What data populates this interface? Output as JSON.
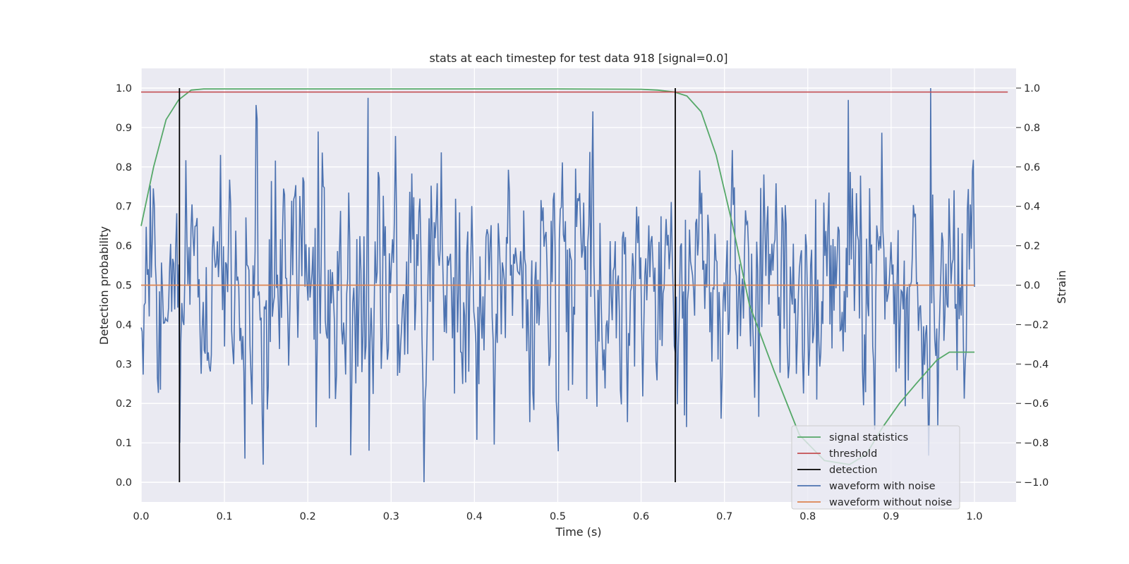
{
  "chart_data": {
    "type": "line",
    "title": "stats at each timestep for test data 918 [signal=0.0]",
    "xlabel": "Time (s)",
    "ylabel": "Detection probability",
    "y2label": "Strain",
    "xlim": [
      0.0,
      1.05
    ],
    "ylim": [
      -0.05,
      1.05
    ],
    "y2lim": [
      -1.1,
      1.1
    ],
    "x_ticks": [
      "0.0",
      "0.1",
      "0.2",
      "0.3",
      "0.4",
      "0.5",
      "0.6",
      "0.7",
      "0.8",
      "0.9",
      "1.0"
    ],
    "y_ticks": [
      "0.0",
      "0.1",
      "0.2",
      "0.3",
      "0.4",
      "0.5",
      "0.6",
      "0.7",
      "0.8",
      "0.9",
      "1.0"
    ],
    "y2_ticks": [
      "−1.0",
      "−0.8",
      "−0.6",
      "−0.4",
      "−0.2",
      "0.0",
      "0.2",
      "0.4",
      "0.6",
      "0.8",
      "1.0"
    ],
    "grid": true,
    "legend_position": "lower-right",
    "series": [
      {
        "name": "signal statistics",
        "color": "#55a868",
        "axis": "left",
        "x": [
          0.0,
          0.015,
          0.03,
          0.045,
          0.06,
          0.075,
          0.1,
          0.2,
          0.3,
          0.4,
          0.5,
          0.6,
          0.62,
          0.64,
          0.655,
          0.672,
          0.69,
          0.71,
          0.73,
          0.76,
          0.79,
          0.82,
          0.85,
          0.87,
          0.89,
          0.91,
          0.93,
          0.955,
          0.97,
          0.985,
          1.0
        ],
        "y": [
          0.65,
          0.8,
          0.92,
          0.97,
          0.995,
          0.998,
          0.998,
          0.998,
          0.998,
          0.998,
          0.998,
          0.997,
          0.995,
          0.99,
          0.98,
          0.94,
          0.83,
          0.65,
          0.45,
          0.28,
          0.12,
          0.055,
          0.045,
          0.07,
          0.14,
          0.2,
          0.25,
          0.31,
          0.33,
          0.33,
          0.33
        ]
      },
      {
        "name": "threshold",
        "color": "#c44e52",
        "axis": "left",
        "x": [
          0.0,
          1.04
        ],
        "y": [
          0.99,
          0.99
        ]
      },
      {
        "name": "detection",
        "color": "#000000",
        "axis": "left",
        "x_positions": [
          0.046,
          0.641
        ],
        "y_range": [
          0.0,
          1.0
        ]
      },
      {
        "name": "waveform with noise",
        "color": "#4c72b0",
        "axis": "right",
        "x_range": [
          0.0,
          1.0
        ],
        "points": 820,
        "y_range": [
          -1.0,
          1.0
        ],
        "values_note": ""
      },
      {
        "name": "waveform without noise",
        "color": "#dd8452",
        "axis": "right",
        "x": [
          0.0,
          1.0
        ],
        "y": [
          0.0,
          0.0
        ]
      }
    ]
  }
}
